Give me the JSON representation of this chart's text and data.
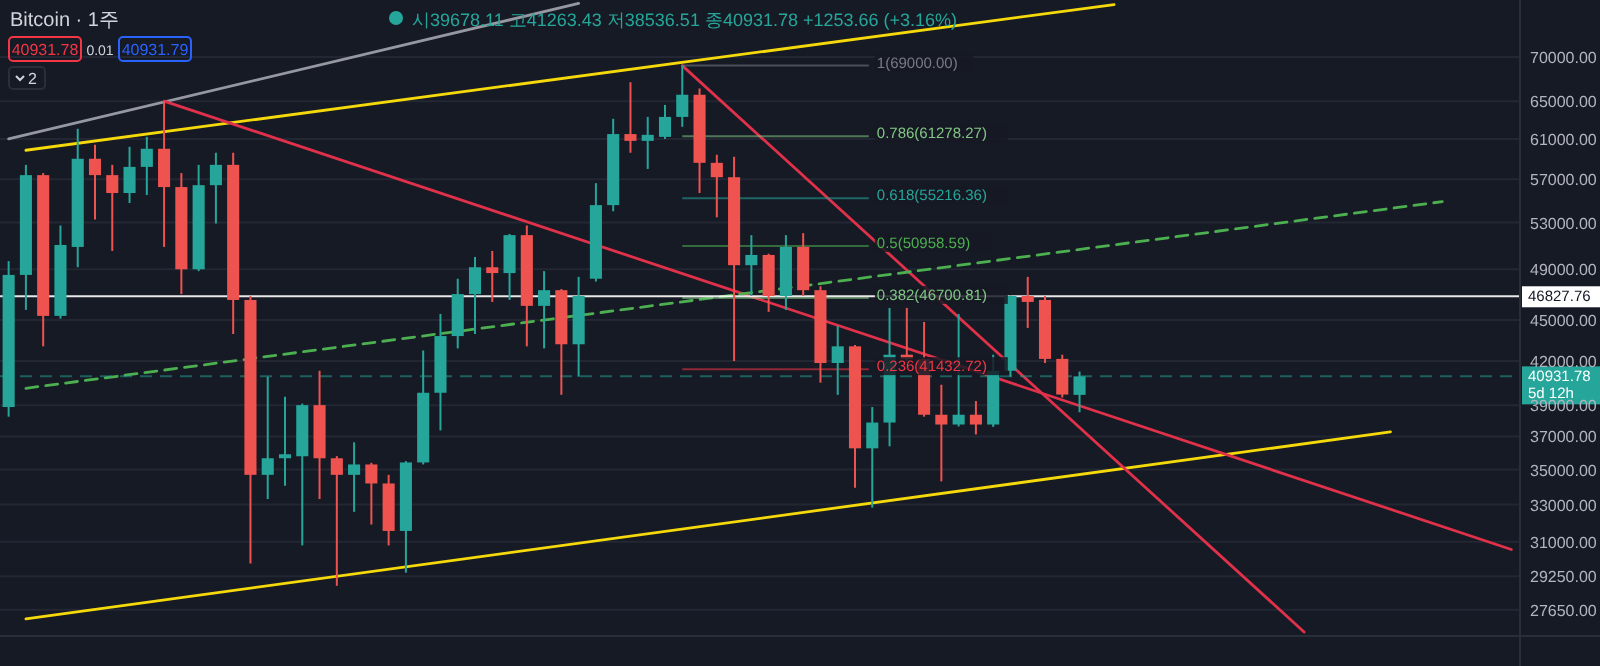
{
  "chart_data": {
    "type": "candlestick",
    "title": "Bitcoin · 1주",
    "annotations": [
      "시39678.11 고41263.43 저38536.51 종40931.78 +1253.66 (+3.16%)",
      "40931.78",
      "0.01",
      "40931.79",
      "2"
    ],
    "categories": [
      null,
      null,
      null,
      null,
      null,
      null,
      null,
      null,
      null,
      null,
      null,
      null,
      null,
      null,
      null,
      null,
      null,
      null,
      null,
      null,
      null,
      null,
      null,
      null,
      null,
      null,
      null,
      null,
      null,
      null,
      null,
      null,
      null,
      null,
      null,
      null,
      null,
      null,
      null,
      null,
      null,
      null,
      null,
      null,
      null,
      null,
      null,
      null,
      null,
      null,
      null,
      null,
      null,
      null,
      null,
      null,
      null,
      null,
      null,
      null,
      null,
      null,
      null,
      null,
      null,
      null,
      null,
      null,
      null,
      null,
      null,
      null,
      null,
      null,
      null,
      null,
      null,
      null,
      null,
      null,
      null,
      null,
      null,
      null,
      null,
      null,
      null,
      null
    ],
    "ohlc": [
      [
        38875,
        49680,
        38250,
        48540
      ],
      [
        48540,
        58400,
        45770,
        57400
      ],
      [
        57400,
        57600,
        43050,
        45310
      ],
      [
        45310,
        52745,
        45100,
        51045
      ],
      [
        50875,
        62050,
        49170,
        59000
      ],
      [
        59000,
        60400,
        53280,
        57400
      ],
      [
        57400,
        58400,
        50535,
        55700
      ],
      [
        55700,
        60200,
        54770,
        58200
      ],
      [
        58200,
        61210,
        55510,
        60000
      ],
      [
        60000,
        65000,
        50875,
        56260
      ],
      [
        56260,
        57600,
        47000,
        49000
      ],
      [
        49000,
        58400,
        48850,
        56440
      ],
      [
        56440,
        59600,
        52915,
        58400
      ],
      [
        58400,
        59600,
        43950,
        46540
      ],
      [
        46540,
        46850,
        29890,
        34690
      ],
      [
        34690,
        40910,
        33310,
        35670
      ],
      [
        35670,
        39550,
        34060,
        35910
      ],
      [
        35790,
        39100,
        30810,
        39000
      ],
      [
        39000,
        41320,
        33310,
        35670
      ],
      [
        35670,
        35800,
        28790,
        34690
      ],
      [
        34690,
        36640,
        32600,
        35300
      ],
      [
        35300,
        35400,
        31910,
        34190
      ],
      [
        34190,
        34690,
        30810,
        31570
      ],
      [
        31570,
        35500,
        29430,
        35420
      ],
      [
        35420,
        42750,
        35300,
        39820
      ],
      [
        39820,
        45460,
        37375,
        43800
      ],
      [
        43800,
        48230,
        42900,
        47000
      ],
      [
        47000,
        50025,
        43950,
        49170
      ],
      [
        49170,
        50535,
        46385,
        48690
      ],
      [
        48690,
        52000,
        46540,
        51895
      ],
      [
        51895,
        52745,
        43050,
        46080
      ],
      [
        46080,
        48850,
        42900,
        47310
      ],
      [
        47310,
        47400,
        39680,
        43200
      ],
      [
        43200,
        48380,
        40910,
        46850
      ],
      [
        48230,
        56630,
        48000,
        54580
      ],
      [
        54580,
        63100,
        54020,
        61500
      ],
      [
        61500,
        67100,
        59600,
        60800
      ],
      [
        60800,
        63300,
        58000,
        61420
      ],
      [
        61210,
        64580,
        61000,
        63300
      ],
      [
        63300,
        69000,
        62260,
        65700
      ],
      [
        65700,
        66400,
        55700,
        58600
      ],
      [
        58600,
        59400,
        53470,
        57200
      ],
      [
        57200,
        59200,
        42000,
        49340
      ],
      [
        49340,
        51895,
        46850,
        50195
      ],
      [
        50195,
        50300,
        45620,
        46850
      ],
      [
        46850,
        51895,
        45770,
        50875
      ],
      [
        50875,
        52065,
        46850,
        47310
      ],
      [
        47310,
        47620,
        40500,
        41860
      ],
      [
        41860,
        44550,
        39680,
        43050
      ],
      [
        43050,
        43150,
        33940,
        36270
      ],
      [
        36270,
        38875,
        32830,
        37875
      ],
      [
        37875,
        45920,
        36395,
        42450
      ],
      [
        42450,
        45920,
        42000,
        42150
      ],
      [
        42150,
        44850,
        38250,
        38375
      ],
      [
        38375,
        40360,
        34310,
        37750
      ],
      [
        37750,
        45460,
        37625,
        38375
      ],
      [
        38375,
        39270,
        37125,
        37750
      ],
      [
        37750,
        42450,
        37600,
        41320
      ],
      [
        41320,
        46900,
        40910,
        46850
      ],
      [
        46850,
        48380,
        44400,
        46385
      ],
      [
        46540,
        46850,
        41860,
        42150
      ],
      [
        42150,
        42450,
        39500,
        39700
      ],
      [
        39678.11,
        41263.43,
        38536.51,
        40931.78
      ],
      null,
      null,
      null,
      null,
      null,
      null,
      null,
      null,
      null,
      null,
      null,
      null,
      null,
      null,
      null,
      null,
      null,
      null,
      null,
      null,
      null,
      null,
      null,
      null,
      null
    ],
    "series": [
      {
        "type": "line",
        "color": "#f5d90a",
        "values": [
          null,
          59850,
          null,
          null,
          null,
          null,
          null,
          null,
          null,
          null,
          null,
          null,
          null,
          null,
          null,
          null,
          null,
          null,
          null,
          null,
          null,
          null,
          null,
          null,
          null,
          null,
          null,
          null,
          null,
          null,
          null,
          null,
          null,
          null,
          null,
          null,
          null,
          null,
          null,
          null,
          null,
          null,
          null,
          null,
          null,
          null,
          null,
          null,
          null,
          null,
          null,
          null,
          null,
          null,
          null,
          null,
          null,
          null,
          null,
          null,
          null,
          null,
          null,
          null,
          76450,
          null,
          null,
          null,
          null,
          null,
          null,
          null,
          null,
          null,
          null,
          null,
          null,
          null,
          null,
          null,
          null,
          null,
          null,
          null,
          null,
          null,
          null,
          null
        ]
      },
      {
        "type": "line",
        "color": "#f5d90a",
        "values": [
          null,
          27230,
          null,
          null,
          null,
          null,
          null,
          null,
          null,
          null,
          null,
          null,
          null,
          null,
          null,
          null,
          null,
          null,
          null,
          null,
          null,
          null,
          null,
          null,
          null,
          null,
          null,
          null,
          null,
          null,
          null,
          null,
          null,
          null,
          null,
          null,
          null,
          null,
          null,
          null,
          null,
          null,
          null,
          null,
          null,
          null,
          null,
          null,
          null,
          null,
          null,
          null,
          null,
          null,
          null,
          null,
          null,
          null,
          null,
          null,
          null,
          null,
          null,
          null,
          null,
          null,
          null,
          null,
          null,
          null,
          null,
          null,
          null,
          null,
          null,
          null,
          null,
          null,
          null,
          null,
          37280,
          null,
          null,
          null,
          null,
          null,
          null,
          null
        ]
      },
      {
        "type": "line",
        "color": "#9598a1",
        "values": [
          61000,
          null,
          null,
          null,
          null,
          null,
          null,
          null,
          null,
          null,
          null,
          null,
          null,
          null,
          null,
          null,
          null,
          null,
          null,
          null,
          null,
          null,
          null,
          null,
          null,
          null,
          null,
          null,
          null,
          null,
          null,
          null,
          null,
          76600,
          null,
          null,
          null,
          null,
          null,
          null,
          null,
          null,
          null,
          null,
          null,
          null,
          null,
          null,
          null,
          null,
          null,
          null,
          null,
          null,
          null,
          null,
          null,
          null,
          null,
          null,
          null,
          null,
          null,
          null,
          null,
          null,
          null,
          null,
          null,
          null,
          null,
          null,
          null,
          null,
          null,
          null,
          null,
          null,
          null,
          null,
          null,
          null,
          null,
          null,
          null,
          null,
          null,
          null
        ]
      },
      {
        "type": "line",
        "color": "#e0314b",
        "values": [
          null,
          null,
          null,
          null,
          null,
          null,
          null,
          null,
          null,
          65000,
          null,
          null,
          null,
          null,
          null,
          null,
          null,
          null,
          null,
          null,
          null,
          null,
          null,
          null,
          null,
          null,
          null,
          null,
          null,
          null,
          null,
          null,
          null,
          null,
          null,
          null,
          null,
          null,
          null,
          null,
          null,
          null,
          null,
          null,
          null,
          null,
          null,
          null,
          null,
          null,
          null,
          null,
          null,
          null,
          null,
          null,
          null,
          null,
          null,
          null,
          null,
          null,
          null,
          null,
          null,
          null,
          null,
          null,
          null,
          null,
          null,
          null,
          null,
          null,
          null,
          null,
          null,
          null,
          null,
          null,
          null,
          null,
          null,
          null,
          null,
          null,
          null,
          30600
        ]
      },
      {
        "type": "line",
        "color": "#e0314b",
        "values": [
          null,
          null,
          null,
          null,
          null,
          null,
          null,
          null,
          null,
          null,
          null,
          null,
          null,
          null,
          null,
          null,
          null,
          null,
          null,
          null,
          null,
          null,
          null,
          null,
          null,
          null,
          null,
          null,
          null,
          null,
          null,
          null,
          null,
          null,
          null,
          null,
          null,
          null,
          null,
          69000,
          null,
          null,
          null,
          null,
          null,
          null,
          null,
          null,
          null,
          null,
          null,
          null,
          null,
          null,
          null,
          null,
          null,
          null,
          null,
          null,
          null,
          null,
          null,
          null,
          null,
          null,
          null,
          null,
          null,
          null,
          null,
          null,
          null,
          null,
          null,
          26640,
          null,
          null,
          null,
          null,
          null,
          null,
          null,
          null,
          null,
          null,
          null,
          null
        ]
      },
      {
        "type": "line",
        "color": "#4caf50",
        "line_style": "dashed",
        "values": [
          null,
          40120,
          null,
          null,
          null,
          null,
          null,
          null,
          null,
          null,
          null,
          null,
          null,
          null,
          null,
          null,
          null,
          null,
          null,
          null,
          null,
          null,
          null,
          null,
          null,
          null,
          null,
          null,
          null,
          null,
          null,
          null,
          null,
          null,
          null,
          null,
          null,
          null,
          null,
          null,
          null,
          null,
          null,
          null,
          null,
          null,
          null,
          null,
          null,
          null,
          null,
          null,
          null,
          null,
          null,
          null,
          null,
          null,
          null,
          null,
          null,
          null,
          null,
          null,
          null,
          null,
          null,
          null,
          null,
          null,
          null,
          null,
          null,
          null,
          null,
          null,
          null,
          null,
          null,
          null,
          null,
          null,
          null,
          54900,
          null,
          null,
          null,
          null
        ]
      }
    ],
    "ref_lines": [
      {
        "axis": "y",
        "value": 69000,
        "label": "1(69000.00)",
        "color": "#787b86"
      },
      {
        "axis": "y",
        "value": 61278.27,
        "label": "0.786(61278.27)",
        "color": "#81c784"
      },
      {
        "axis": "y",
        "value": 55216.36,
        "label": "0.618(55216.36)",
        "color": "#26a69a"
      },
      {
        "axis": "y",
        "value": 50958.59,
        "label": "0.5(50958.59)",
        "color": "#4caf50"
      },
      {
        "axis": "y",
        "value": 46700.81,
        "label": "0.382(46700.81)",
        "color": "#81c784"
      },
      {
        "axis": "y",
        "value": 41432.72,
        "label": "0.236(41432.72)",
        "color": "#f23645"
      },
      {
        "axis": "y",
        "value": 46827.76,
        "label": "46827.76",
        "color": "#ffffff",
        "line_style": "solid"
      },
      {
        "axis": "y",
        "value": 40931.78,
        "label": "40931.78\n5d 12h",
        "color": "#26a69a",
        "line_style": "dashed"
      }
    ],
    "ylim": [
      26460,
      77040
    ],
    "log": true,
    "grid": "y",
    "tick_labels": "y",
    "yticks": [
      {
        "value": 70000,
        "label": "70000.00"
      },
      {
        "value": 65000,
        "label": "65000.00"
      },
      {
        "value": 61000,
        "label": "61000.00"
      },
      {
        "value": 57000,
        "label": "57000.00"
      },
      {
        "value": 53000,
        "label": "53000.00"
      },
      {
        "value": 49000,
        "label": "49000.00"
      },
      {
        "value": 45000,
        "label": "45000.00"
      },
      {
        "value": 42000,
        "label": "42000.00"
      },
      {
        "value": 39000,
        "label": "39000.00"
      },
      {
        "value": 37000,
        "label": "37000.00"
      },
      {
        "value": 35000,
        "label": "35000.00"
      },
      {
        "value": 33000,
        "label": "33000.00"
      },
      {
        "value": 31000,
        "label": "31000.00"
      },
      {
        "value": 29250,
        "label": "29250.00"
      },
      {
        "value": 27650,
        "label": "27650.00"
      }
    ]
  }
}
